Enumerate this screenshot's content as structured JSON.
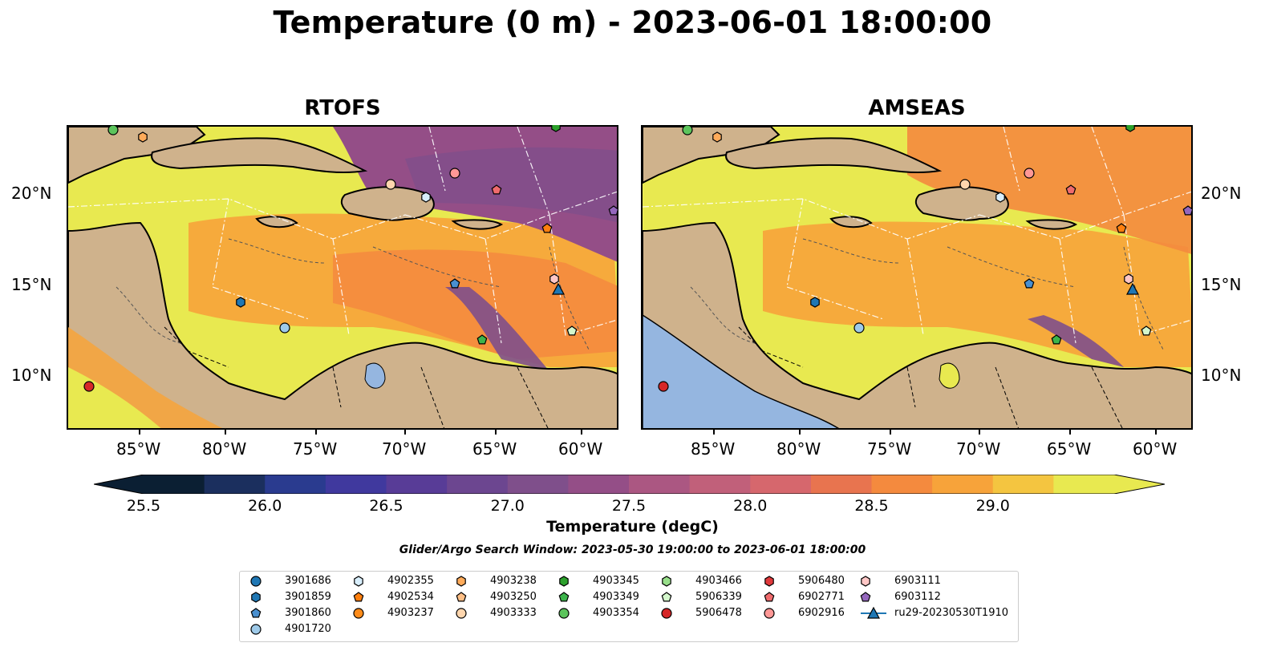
{
  "title": "Temperature (0 m) - 2023-06-01 18:00:00",
  "panels": [
    {
      "name": "RTOFS"
    },
    {
      "name": "AMSEAS"
    }
  ],
  "lon_labels": [
    "85°W",
    "80°W",
    "75°W",
    "70°W",
    "65°W",
    "60°W"
  ],
  "lat_labels": [
    "20°N",
    "15°N",
    "10°N"
  ],
  "colorbar": {
    "label": "Temperature (degC)",
    "ticks": [
      "25.5",
      "26.0",
      "26.5",
      "27.0",
      "27.5",
      "28.0",
      "28.5",
      "29.0"
    ],
    "colors": [
      "#0b1f33",
      "#1b2f5e",
      "#2a3b8f",
      "#40399e",
      "#583c97",
      "#6c4690",
      "#7f4f8b",
      "#944e87",
      "#ab5782",
      "#c1607a",
      "#d6676d",
      "#e8744f",
      "#f48a3e",
      "#f7a33a",
      "#f4c540",
      "#e8e950"
    ],
    "extend": "both"
  },
  "search_window": "Glider/Argo Search Window: 2023-05-30 19:00:00 to 2023-06-01 18:00:00",
  "legend": [
    {
      "id": "3901686",
      "marker": "circle",
      "color": "#1f77b4"
    },
    {
      "id": "3901859",
      "marker": "hexagon",
      "color": "#1f77b4"
    },
    {
      "id": "3901860",
      "marker": "pentagon",
      "color": "#4a90d0"
    },
    {
      "id": "4901720",
      "marker": "circle",
      "color": "#9ecae9"
    },
    {
      "id": "4902355",
      "marker": "hexagon",
      "color": "#d8eefc"
    },
    {
      "id": "4902534",
      "marker": "pentagon",
      "color": "#ff7f0e"
    },
    {
      "id": "4903237",
      "marker": "circle",
      "color": "#ff8c1a"
    },
    {
      "id": "4903238",
      "marker": "hexagon",
      "color": "#ffab5a"
    },
    {
      "id": "4903250",
      "marker": "pentagon",
      "color": "#ffbf86"
    },
    {
      "id": "4903333",
      "marker": "circle",
      "color": "#ffd6ae"
    },
    {
      "id": "4903345",
      "marker": "hexagon",
      "color": "#2ca02c"
    },
    {
      "id": "4903349",
      "marker": "pentagon",
      "color": "#3cb44b"
    },
    {
      "id": "4903354",
      "marker": "circle",
      "color": "#5cc45c"
    },
    {
      "id": "4903466",
      "marker": "hexagon",
      "color": "#98df8a"
    },
    {
      "id": "5906339",
      "marker": "pentagon",
      "color": "#d4f7cc"
    },
    {
      "id": "5906478",
      "marker": "circle",
      "color": "#d62728"
    },
    {
      "id": "5906480",
      "marker": "hexagon",
      "color": "#e0393b"
    },
    {
      "id": "6902771",
      "marker": "pentagon",
      "color": "#f06b6d"
    },
    {
      "id": "6902916",
      "marker": "circle",
      "color": "#ff9896"
    },
    {
      "id": "6903111",
      "marker": "hexagon",
      "color": "#ffc7c6"
    },
    {
      "id": "6903112",
      "marker": "pentagon",
      "color": "#9467bd"
    },
    {
      "id": "ru29-20230530T1910",
      "marker": "triangle-line",
      "color": "#1f77b4"
    }
  ],
  "colors": {
    "land": "#cfb28c",
    "ocean_warm": "#e8e950",
    "ocean_mid": "#f7a33a",
    "ocean_cool": "#8a4c8d",
    "amseas_nodata": "#95b6e0"
  }
}
